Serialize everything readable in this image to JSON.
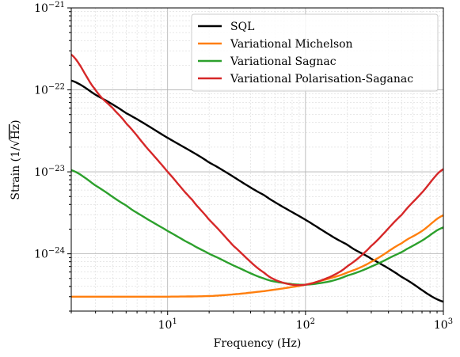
{
  "chart_data": {
    "type": "line",
    "title": "",
    "xlabel": "Frequency (Hz)",
    "ylabel_prefix": "Strain (1/",
    "ylabel_sqrt": "√",
    "ylabel_unit": "Hz",
    "ylabel_suffix": ")",
    "xscale": "log",
    "yscale": "log",
    "xlim": [
      2,
      1000
    ],
    "ylim": [
      2e-25,
      1e-21
    ],
    "grid": true,
    "legend_position": "top-right",
    "x_ticks": [
      {
        "base": "10",
        "exp": "1",
        "value": 10
      },
      {
        "base": "10",
        "exp": "2",
        "value": 100
      },
      {
        "base": "10",
        "exp": "3",
        "value": 1000
      }
    ],
    "y_ticks": [
      {
        "base": "10",
        "exp": "−21",
        "value": 1e-21
      },
      {
        "base": "10",
        "exp": "−22",
        "value": 1e-22
      },
      {
        "base": "10",
        "exp": "−23",
        "value": 1e-23
      },
      {
        "base": "10",
        "exp": "−24",
        "value": 1e-24
      }
    ],
    "series": [
      {
        "name": "SQL",
        "color": "#000000",
        "x": [
          2,
          3,
          5,
          10,
          20,
          50,
          100,
          200,
          300,
          500,
          1000
        ],
        "y": [
          1.3e-22,
          8.7e-23,
          5.2e-23,
          2.6e-23,
          1.3e-23,
          5.2e-24,
          2.6e-24,
          1.3e-24,
          8.7e-25,
          5.2e-25,
          2.6e-25
        ]
      },
      {
        "name": "Variational Michelson",
        "color": "#ff7f0e",
        "x": [
          2,
          5,
          10,
          20,
          30,
          50,
          70,
          100,
          150,
          200,
          300,
          500,
          700,
          1000
        ],
        "y": [
          3e-25,
          3e-25,
          3e-25,
          3.05e-25,
          3.2e-25,
          3.5e-25,
          3.8e-25,
          4.2e-25,
          5e-25,
          5.9e-25,
          8e-25,
          1.35e-24,
          1.9e-24,
          2.95e-24
        ]
      },
      {
        "name": "Variational Sagnac",
        "color": "#2ca02c",
        "x": [
          2,
          3,
          5,
          7,
          10,
          15,
          20,
          30,
          50,
          70,
          100,
          150,
          200,
          300,
          500,
          700,
          1000
        ],
        "y": [
          1.05e-23,
          6.8e-24,
          3.9e-24,
          2.7e-24,
          1.9e-24,
          1.3e-24,
          1e-24,
          7.2e-25,
          5e-25,
          4.4e-25,
          4.2e-25,
          4.6e-25,
          5.4e-25,
          7e-25,
          1.05e-24,
          1.45e-24,
          2.1e-24
        ]
      },
      {
        "name": "Variational Polarisation-Saganac",
        "color": "#d62728",
        "x": [
          2,
          3,
          4,
          5,
          7,
          10,
          15,
          20,
          30,
          50,
          70,
          100,
          150,
          200,
          300,
          500,
          700,
          1000
        ],
        "y": [
          2.7e-22,
          1e-22,
          6e-23,
          3.9e-23,
          2e-23,
          1e-23,
          4.6e-24,
          2.6e-24,
          1.25e-24,
          5.9e-25,
          4.4e-25,
          4.2e-25,
          5.2e-25,
          7e-25,
          1.25e-24,
          3e-24,
          5.6e-24,
          1.08e-23
        ]
      }
    ]
  }
}
